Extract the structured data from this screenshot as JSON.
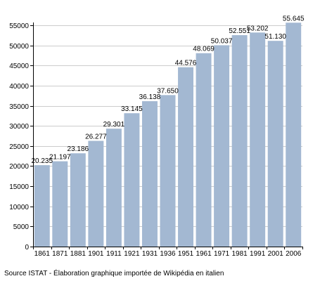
{
  "colors": {
    "bar": "#a3b8d2",
    "grid": "#cccccc",
    "axis": "#000000"
  },
  "source_note": "Source ISTAT - Élaboration graphique importée de Wikipédia en italien",
  "chart_data": {
    "type": "bar",
    "title": "",
    "xlabel": "",
    "ylabel": "",
    "ylim": [
      0,
      55000
    ],
    "grid": true,
    "y_ticks": [
      0,
      5000,
      10000,
      15000,
      20000,
      25000,
      30000,
      35000,
      40000,
      45000,
      50000,
      55000
    ],
    "categories": [
      "1861",
      "1871",
      "1881",
      "1901",
      "1911",
      "1921",
      "1931",
      "1936",
      "1951",
      "1961",
      "1971",
      "1981",
      "1991",
      "2001",
      "2006"
    ],
    "values": [
      20235,
      21197,
      23186,
      26277,
      29301,
      33145,
      36138,
      37650,
      44576,
      48069,
      50037,
      52551,
      53202,
      51130,
      55645
    ],
    "data_labels": [
      "20.235",
      "21.197",
      "23.186",
      "26.277",
      "29.301",
      "33.145",
      "36.138",
      "37.650",
      "44.576",
      "48.069",
      "50.037",
      "52.551",
      "53.202",
      "51.130",
      "55.645"
    ]
  }
}
